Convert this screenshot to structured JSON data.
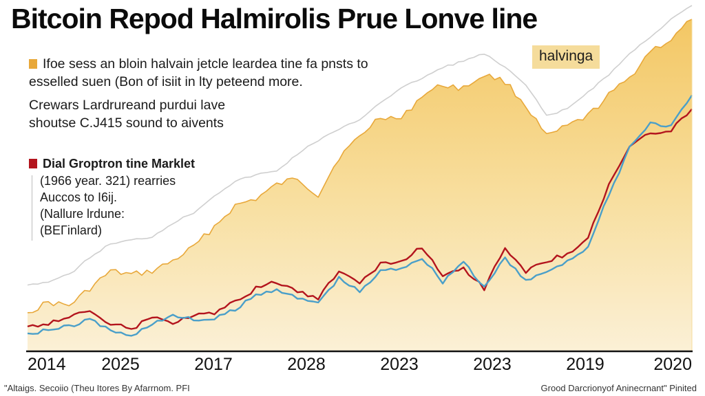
{
  "chart_data": {
    "type": "area",
    "title": "Bitcoin Repod Halmirolis Prue Lonve line",
    "xlabel": "",
    "ylabel": "",
    "ylim": [
      0,
      100
    ],
    "grid": false,
    "x_tick_labels": [
      "2014",
      "2025",
      "2017",
      "2028",
      "2023",
      "2023",
      "2019",
      "2020"
    ],
    "annotation": "halvinga",
    "series": [
      {
        "name": "gold-area",
        "kind": "area",
        "color": "#e8a83a",
        "values": [
          11,
          14,
          13,
          18,
          23,
          22,
          23,
          26,
          30,
          36,
          42,
          44,
          48,
          50,
          45,
          56,
          62,
          68,
          67,
          74,
          77,
          76,
          80,
          78,
          71,
          62,
          65,
          68,
          74,
          79,
          87,
          90,
          96
        ]
      },
      {
        "name": "grey-line",
        "kind": "line",
        "color": "#cfcfcf",
        "values": [
          19,
          20,
          22,
          27,
          31,
          32,
          33,
          37,
          40,
          45,
          49,
          51,
          52,
          57,
          61,
          64,
          67,
          72,
          76,
          79,
          82,
          84,
          86,
          82,
          77,
          68,
          70,
          75,
          80,
          86,
          91,
          96,
          100
        ]
      },
      {
        "name": "red-line",
        "kind": "line",
        "color": "#b3141d",
        "values": [
          7,
          8,
          10,
          11,
          8,
          6,
          10,
          8,
          10,
          11,
          14,
          18,
          20,
          17,
          15,
          23,
          20,
          25,
          26,
          30,
          22,
          24,
          18,
          30,
          23,
          26,
          28,
          33,
          48,
          59,
          63,
          64,
          70
        ]
      },
      {
        "name": "blue-line",
        "kind": "line",
        "color": "#4a9fc9",
        "values": [
          5,
          6,
          7,
          9,
          6,
          4,
          8,
          10,
          9,
          9,
          12,
          16,
          18,
          15,
          14,
          21,
          17,
          23,
          24,
          27,
          20,
          26,
          18,
          27,
          20,
          23,
          26,
          30,
          45,
          59,
          66,
          65,
          74
        ]
      }
    ]
  },
  "notes": {
    "note1": {
      "swatch_color": "#e8a83a",
      "line1": "Ifoe sess an bloin halvain jetcle leardea tine fa pnsts to",
      "line2": "esselled suen (Bon of isiit in lty peteend more."
    },
    "note2": {
      "line1": "Crewars Lardrureand purdui lave",
      "line2": "shoutse C.J415 sound to aivents"
    },
    "note3": {
      "swatch_color": "#b3141d",
      "head": "Dial Groptron tine Marklet",
      "line1": "(1966 year. 321) rearries",
      "line2": "Auccos to I6ij.",
      "line3": "(Nallure lrdune:",
      "line4": "(BEΓinlard)"
    }
  },
  "footer": {
    "left": "\"Altaigs. Secoiio (Theu Itores By Afarrnom. PFI",
    "right": "Grood Darcrionyof Aninecrnant\" Pinited"
  }
}
